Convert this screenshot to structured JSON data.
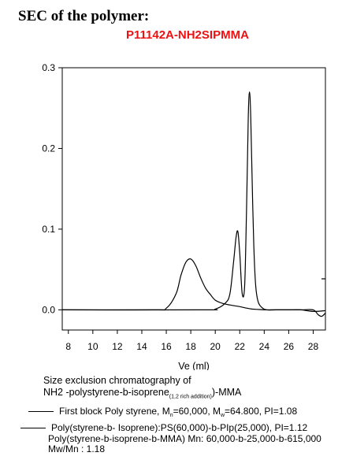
{
  "heading": "SEC of the polymer:",
  "sample_id": "P11142A-NH2SIPMMA",
  "colors": {
    "sample_id": "#ee1111",
    "trace": "#000000"
  },
  "chart_data": {
    "type": "line",
    "xlabel": "Ve (ml)",
    "ylabel": "",
    "xlim": [
      7.5,
      29
    ],
    "ylim": [
      -0.025,
      0.3
    ],
    "x_ticks": [
      "8",
      "10",
      "12",
      "14",
      "16",
      "18",
      "20",
      "22",
      "24",
      "26",
      "28"
    ],
    "y_ticks": [
      "0.0",
      "0.1",
      "0.2",
      "0.3"
    ],
    "grid": false,
    "series": [
      {
        "name": "First block Poly styrene",
        "x": [
          7.5,
          15,
          16,
          16.8,
          17.2,
          17.6,
          18.0,
          18.4,
          18.8,
          19.2,
          19.6,
          20.0,
          20.6,
          21.2,
          21.6,
          22.0,
          22.3,
          22.6,
          23.0,
          23.5,
          24.0,
          24.5,
          25.0,
          26.0,
          27.0,
          28.0,
          29.0
        ],
        "y": [
          0,
          0,
          0.002,
          0.02,
          0.043,
          0.059,
          0.063,
          0.055,
          0.04,
          0.027,
          0.019,
          0.012,
          0.008,
          0.006,
          0.005,
          0.004,
          0.003,
          0.002,
          0.001,
          0.0005,
          0,
          0,
          0,
          0,
          0,
          -0.002,
          -0.001
        ]
      },
      {
        "name": "Poly(styrene-b-isoprene-b-MMA)",
        "x": [
          7.5,
          19,
          20,
          20.8,
          21.2,
          21.5,
          21.7,
          21.85,
          22.0,
          22.2,
          22.4,
          22.55,
          22.7,
          22.8,
          22.9,
          23.0,
          23.15,
          23.3,
          23.5,
          23.8,
          24.2,
          25.0,
          26.0,
          27.0,
          28.0,
          28.4,
          28.7,
          29.0
        ],
        "y": [
          0,
          0,
          0.001,
          0.008,
          0.02,
          0.06,
          0.09,
          0.097,
          0.07,
          0.02,
          0.03,
          0.12,
          0.24,
          0.27,
          0.24,
          0.17,
          0.08,
          0.03,
          0.01,
          0.003,
          0,
          0,
          0,
          0,
          0,
          -0.006,
          -0.008,
          -0.004
        ]
      }
    ]
  },
  "caption": {
    "line1": "Size exclusion chromatography of",
    "line2_pre": "NH2 -polystyrene-b-isoprene",
    "line2_sub": "(1,2 rich addition)",
    "line2_post": ")-MMA"
  },
  "legend": [
    {
      "text_a": "First block Poly styrene, M",
      "sub_a": "n",
      "text_b": "=60,000, M",
      "sub_b": "w",
      "text_c": "=64.800, PI=1.08"
    },
    {
      "line_a": "Poly(styrene-b- Isoprene):PS(60,000)-b-PIp(25,000),  PI=1.12",
      "line_b": "Poly(styrene-b-isoprene-b-MMA) Mn: 60,000-b-25,000-b-615,000",
      "line_c": "Mw/Mn : 1.18"
    }
  ]
}
